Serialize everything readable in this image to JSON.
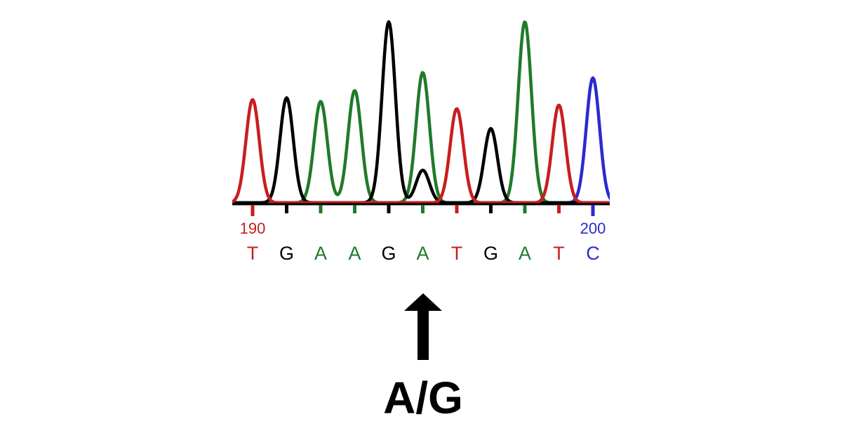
{
  "chart_data": {
    "type": "line",
    "title": "",
    "xlabel": "",
    "ylabel": "",
    "ylim": [
      0,
      1
    ],
    "base_colors": {
      "A": "#1f7a2a",
      "C": "#2a2ad0",
      "G": "#000000",
      "T": "#c81e1e"
    },
    "position_labels": [
      {
        "index": 0,
        "text": "190",
        "base": "T"
      },
      {
        "index": 10,
        "text": "200",
        "base": "C"
      }
    ],
    "base_calls": [
      "T",
      "G",
      "A",
      "A",
      "G",
      "A",
      "T",
      "G",
      "A",
      "T",
      "C"
    ],
    "series": [
      {
        "base": "T",
        "peaks": [
          {
            "position": 0,
            "height": 0.57
          },
          {
            "position": 6,
            "height": 0.52
          },
          {
            "position": 9,
            "height": 0.54
          }
        ]
      },
      {
        "base": "G",
        "peaks": [
          {
            "position": 1,
            "height": 0.58
          },
          {
            "position": 4,
            "height": 1.0
          },
          {
            "position": 5,
            "height": 0.18
          },
          {
            "position": 7,
            "height": 0.41
          }
        ]
      },
      {
        "base": "A",
        "peaks": [
          {
            "position": 2,
            "height": 0.56
          },
          {
            "position": 3,
            "height": 0.62
          },
          {
            "position": 5,
            "height": 0.72
          },
          {
            "position": 8,
            "height": 1.0
          }
        ]
      },
      {
        "base": "C",
        "peaks": [
          {
            "position": 10,
            "height": 0.69
          }
        ]
      }
    ],
    "variant": {
      "position": 5,
      "label": "A/G"
    }
  }
}
